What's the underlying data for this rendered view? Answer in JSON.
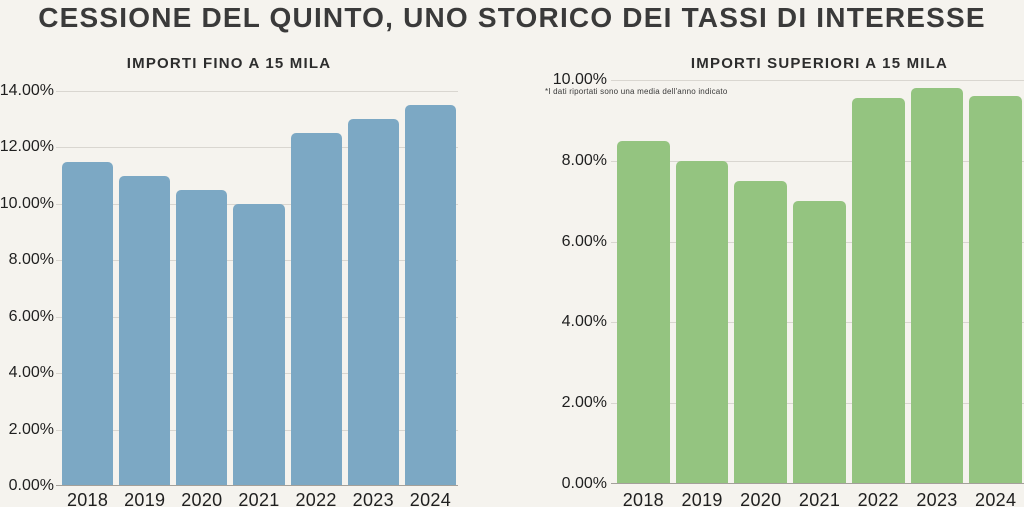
{
  "title": "CESSIONE DEL QUINTO, UNO STORICO DEI TASSI DI INTERESSE",
  "colors": {
    "background": "#F5F3EE",
    "bar_blue": "#7CA8C4",
    "bar_green": "#94C480",
    "gridline": "#D9D6D0",
    "axis_line": "#A3A09A",
    "text_dark": "#3A3A3A"
  },
  "chart_data": [
    {
      "type": "bar",
      "title": "IMPORTI FINO A 15 MILA",
      "categories": [
        "2018",
        "2019",
        "2020",
        "2021",
        "2022",
        "2023",
        "2024"
      ],
      "values": [
        11.5,
        11.0,
        10.5,
        10.0,
        12.5,
        13.0,
        13.5
      ],
      "unit": "%",
      "ylim": [
        0,
        14
      ],
      "ytick_step": 2,
      "yticks": [
        "14.00%",
        "12.00%",
        "10.00%",
        "8.00%",
        "6.00%",
        "4.00%",
        "2.00%",
        "0.00%"
      ],
      "bar_color": "#7CA8C4",
      "grid": true,
      "legend": "none"
    },
    {
      "type": "bar",
      "title": "IMPORTI SUPERIORI A 15 MILA",
      "note": "*I dati riportati sono una media dell'anno indicato",
      "categories": [
        "2018",
        "2019",
        "2020",
        "2021",
        "2022",
        "2023",
        "2024"
      ],
      "values": [
        8.5,
        8.0,
        7.5,
        7.0,
        9.55,
        9.8,
        9.6
      ],
      "unit": "%",
      "ylim": [
        0,
        10
      ],
      "ytick_step": 2,
      "yticks": [
        "10.00%",
        "8.00%",
        "6.00%",
        "4.00%",
        "2.00%",
        "0.00%"
      ],
      "bar_color": "#94C480",
      "grid": true,
      "legend": "none"
    }
  ]
}
